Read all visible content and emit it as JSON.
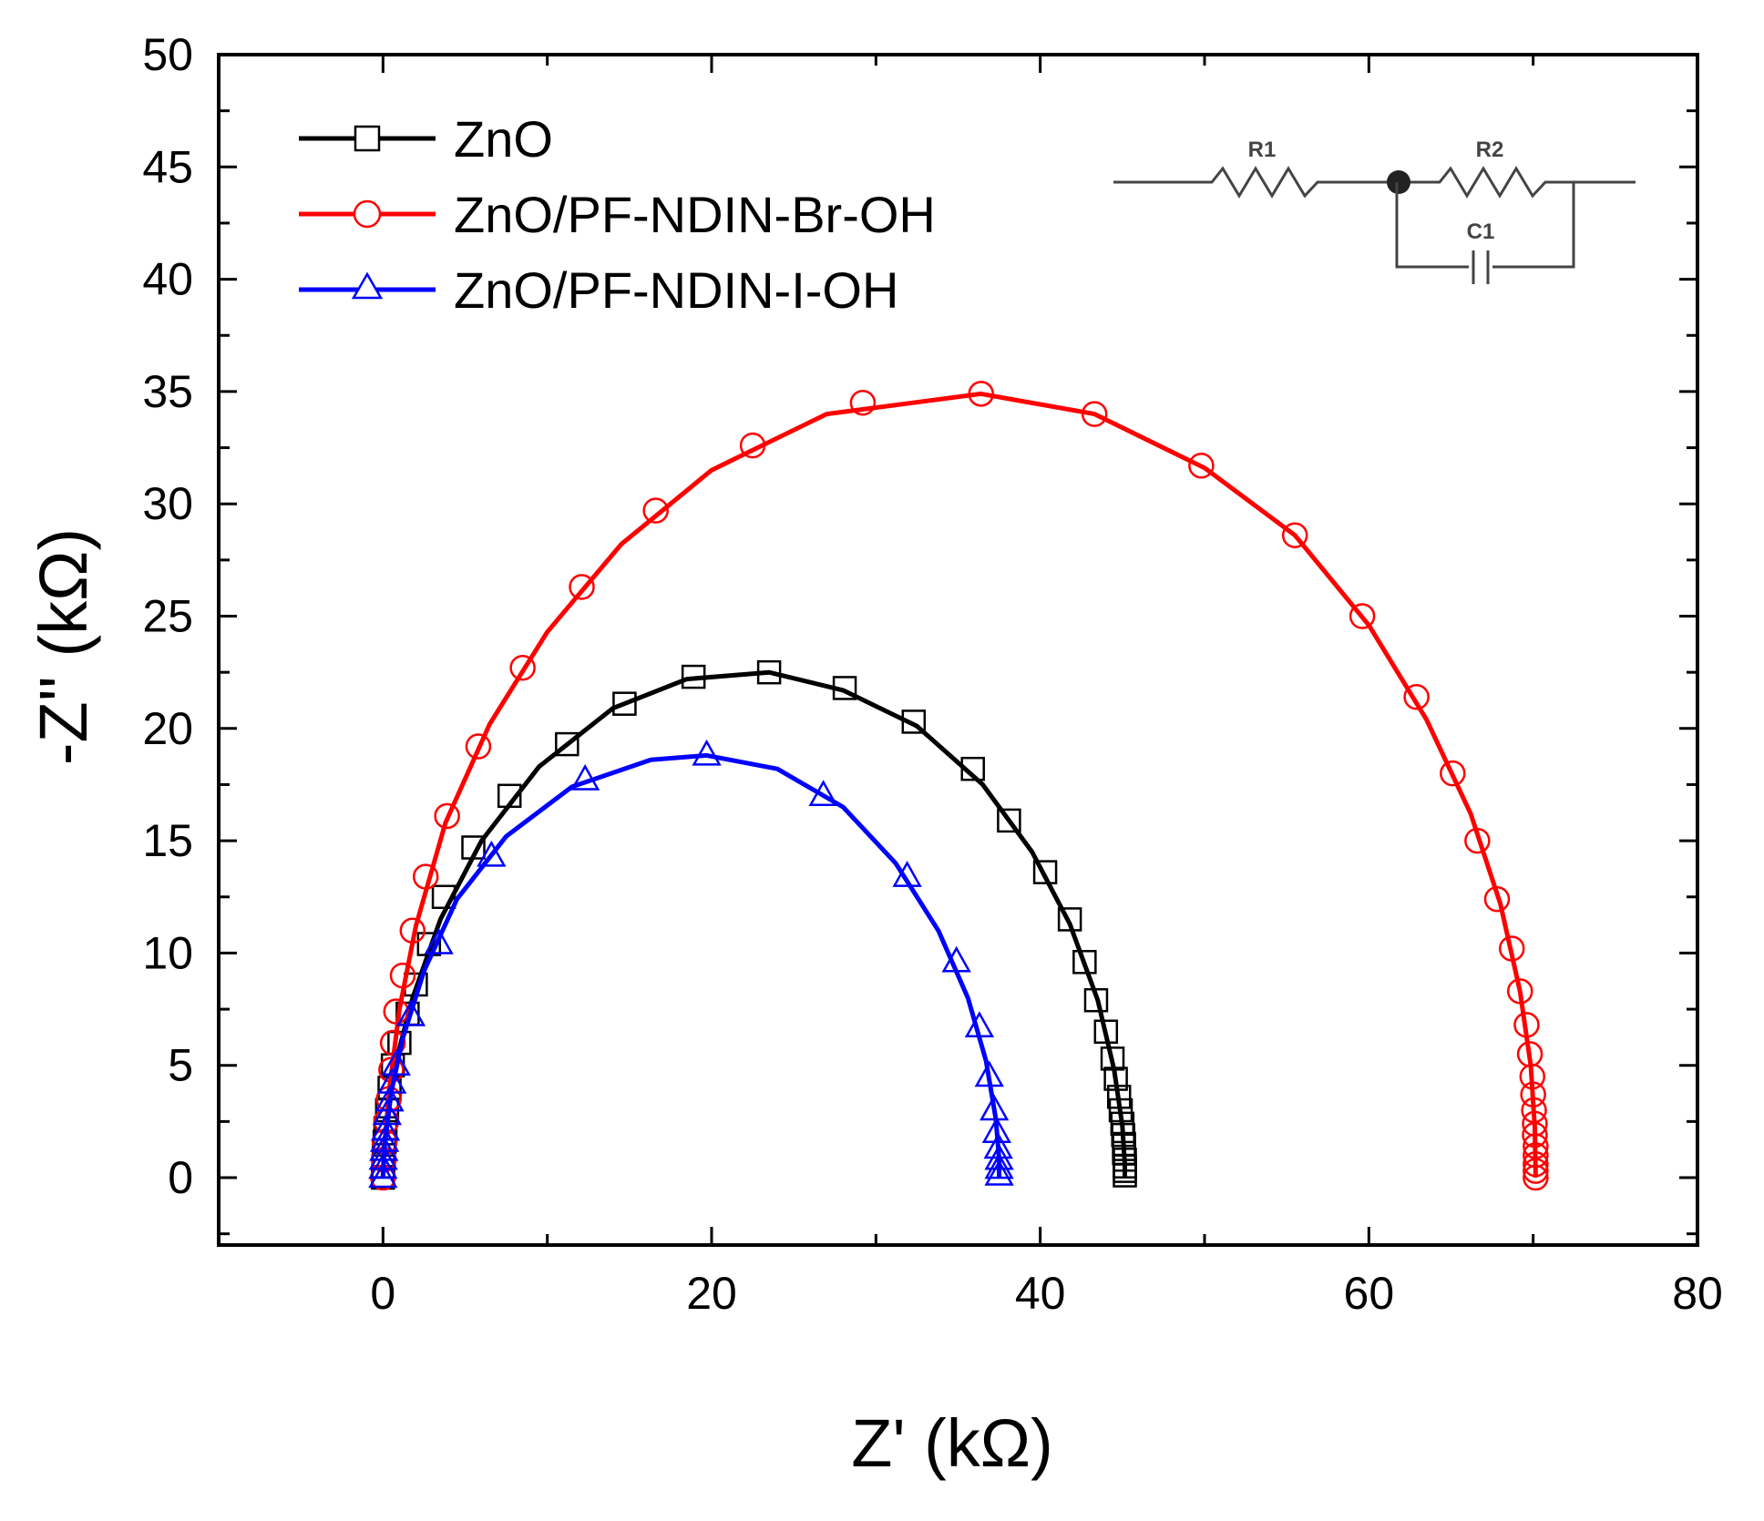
{
  "chart_data": {
    "type": "scatter",
    "title": "",
    "xlabel": "Z' (kΩ)",
    "ylabel": "-Z'' (kΩ)",
    "xlim": [
      -10,
      80
    ],
    "ylim": [
      -3,
      50
    ],
    "xticks": [
      0,
      20,
      40,
      60,
      80
    ],
    "yticks": [
      0,
      5,
      10,
      15,
      20,
      25,
      30,
      35,
      40,
      45,
      50
    ],
    "grid": false,
    "legend_position": "top-left",
    "series": [
      {
        "name": "ZnO",
        "color": "#000000",
        "marker": "square",
        "points": [
          [
            0.0,
            0.0
          ],
          [
            0.02,
            0.5
          ],
          [
            0.05,
            1.0
          ],
          [
            0.1,
            1.6
          ],
          [
            0.15,
            2.2
          ],
          [
            0.25,
            3.0
          ],
          [
            0.4,
            4.0
          ],
          [
            0.6,
            5.0
          ],
          [
            1.0,
            6.0
          ],
          [
            1.5,
            7.3
          ],
          [
            2.0,
            8.6
          ],
          [
            2.8,
            10.4
          ],
          [
            3.7,
            12.5
          ],
          [
            5.5,
            14.7
          ],
          [
            7.7,
            17.0
          ],
          [
            11.2,
            19.3
          ],
          [
            14.7,
            21.1
          ],
          [
            18.9,
            22.3
          ],
          [
            23.5,
            22.5
          ],
          [
            28.1,
            21.8
          ],
          [
            32.3,
            20.3
          ],
          [
            35.9,
            18.2
          ],
          [
            38.1,
            15.9
          ],
          [
            40.3,
            13.6
          ],
          [
            41.8,
            11.5
          ],
          [
            42.7,
            9.6
          ],
          [
            43.4,
            7.9
          ],
          [
            44.0,
            6.5
          ],
          [
            44.4,
            5.3
          ],
          [
            44.6,
            4.4
          ],
          [
            44.8,
            3.6
          ],
          [
            44.9,
            3.0
          ],
          [
            45.0,
            2.4
          ],
          [
            45.05,
            1.9
          ],
          [
            45.1,
            1.5
          ],
          [
            45.1,
            1.1
          ],
          [
            45.15,
            0.8
          ],
          [
            45.15,
            0.5
          ],
          [
            45.15,
            0.3
          ],
          [
            45.15,
            0.1
          ]
        ],
        "fit": [
          [
            0.0,
            0.0
          ],
          [
            0.05,
            1.0
          ],
          [
            0.3,
            3.0
          ],
          [
            0.8,
            5.2
          ],
          [
            1.8,
            8.0
          ],
          [
            3.5,
            11.5
          ],
          [
            6.0,
            15.0
          ],
          [
            9.5,
            18.3
          ],
          [
            14.0,
            20.9
          ],
          [
            18.5,
            22.2
          ],
          [
            23.5,
            22.5
          ],
          [
            28.0,
            21.7
          ],
          [
            32.5,
            20.1
          ],
          [
            36.5,
            17.5
          ],
          [
            39.5,
            14.5
          ],
          [
            41.8,
            11.3
          ],
          [
            43.5,
            7.9
          ],
          [
            44.5,
            4.8
          ],
          [
            45.0,
            2.3
          ],
          [
            45.15,
            0.6
          ],
          [
            45.15,
            0.0
          ]
        ]
      },
      {
        "name": "ZnO/PF-NDIN-Br-OH",
        "color": "#ff0000",
        "marker": "circle",
        "points": [
          [
            0.0,
            0.0
          ],
          [
            0.05,
            0.8
          ],
          [
            0.1,
            1.6
          ],
          [
            0.2,
            2.5
          ],
          [
            0.35,
            3.5
          ],
          [
            0.5,
            4.8
          ],
          [
            0.6,
            6.0
          ],
          [
            0.8,
            7.4
          ],
          [
            1.2,
            9.0
          ],
          [
            1.8,
            11.0
          ],
          [
            2.6,
            13.4
          ],
          [
            3.9,
            16.1
          ],
          [
            5.8,
            19.2
          ],
          [
            8.5,
            22.7
          ],
          [
            12.1,
            26.3
          ],
          [
            16.6,
            29.7
          ],
          [
            22.5,
            32.6
          ],
          [
            29.2,
            34.5
          ],
          [
            36.4,
            34.9
          ],
          [
            43.3,
            34.0
          ],
          [
            49.8,
            31.7
          ],
          [
            55.5,
            28.6
          ],
          [
            59.6,
            25.0
          ],
          [
            62.9,
            21.4
          ],
          [
            65.1,
            18.0
          ],
          [
            66.6,
            15.0
          ],
          [
            67.8,
            12.4
          ],
          [
            68.7,
            10.2
          ],
          [
            69.2,
            8.3
          ],
          [
            69.6,
            6.8
          ],
          [
            69.8,
            5.5
          ],
          [
            69.95,
            4.5
          ],
          [
            70.0,
            3.7
          ],
          [
            70.05,
            3.0
          ],
          [
            70.1,
            2.4
          ],
          [
            70.1,
            1.9
          ],
          [
            70.15,
            1.4
          ],
          [
            70.15,
            1.0
          ],
          [
            70.15,
            0.6
          ],
          [
            70.15,
            0.3
          ],
          [
            70.15,
            0.0
          ]
        ],
        "fit": [
          [
            0.0,
            0.0
          ],
          [
            0.1,
            1.5
          ],
          [
            0.4,
            4.0
          ],
          [
            1.0,
            7.5
          ],
          [
            2.0,
            11.2
          ],
          [
            3.8,
            15.8
          ],
          [
            6.5,
            20.2
          ],
          [
            10.0,
            24.3
          ],
          [
            14.5,
            28.2
          ],
          [
            20.0,
            31.5
          ],
          [
            27.0,
            34.0
          ],
          [
            36.4,
            34.9
          ],
          [
            43.3,
            34.0
          ],
          [
            50.0,
            31.6
          ],
          [
            55.5,
            28.6
          ],
          [
            60.0,
            24.6
          ],
          [
            63.5,
            20.4
          ],
          [
            66.2,
            16.2
          ],
          [
            68.0,
            12.2
          ],
          [
            69.2,
            8.3
          ],
          [
            69.85,
            5.0
          ],
          [
            70.1,
            2.2
          ],
          [
            70.15,
            0.0
          ]
        ]
      },
      {
        "name": "ZnO/PF-NDIN-I-OH",
        "color": "#0000ff",
        "marker": "triangle",
        "points": [
          [
            0.0,
            0.0
          ],
          [
            0.0,
            0.4
          ],
          [
            0.02,
            0.8
          ],
          [
            0.05,
            1.2
          ],
          [
            0.1,
            1.6
          ],
          [
            0.15,
            2.1
          ],
          [
            0.25,
            2.8
          ],
          [
            0.4,
            3.4
          ],
          [
            0.55,
            4.2
          ],
          [
            0.8,
            5.0
          ],
          [
            1.7,
            7.2
          ],
          [
            3.4,
            10.4
          ],
          [
            6.6,
            14.3
          ],
          [
            12.3,
            17.7
          ],
          [
            19.7,
            18.8
          ],
          [
            26.8,
            17.0
          ],
          [
            31.9,
            13.4
          ],
          [
            34.9,
            9.6
          ],
          [
            36.3,
            6.7
          ],
          [
            36.9,
            4.5
          ],
          [
            37.2,
            3.0
          ],
          [
            37.35,
            2.0
          ],
          [
            37.45,
            1.3
          ],
          [
            37.5,
            0.8
          ],
          [
            37.5,
            0.4
          ],
          [
            37.5,
            0.1
          ]
        ],
        "fit": [
          [
            0.0,
            0.0
          ],
          [
            0.1,
            1.4
          ],
          [
            0.5,
            3.8
          ],
          [
            1.2,
            6.2
          ],
          [
            2.5,
            9.2
          ],
          [
            4.5,
            12.4
          ],
          [
            7.5,
            15.2
          ],
          [
            11.5,
            17.4
          ],
          [
            16.3,
            18.6
          ],
          [
            19.7,
            18.8
          ],
          [
            24.0,
            18.2
          ],
          [
            28.0,
            16.5
          ],
          [
            31.2,
            14.0
          ],
          [
            33.8,
            11.0
          ],
          [
            35.6,
            8.0
          ],
          [
            36.7,
            5.2
          ],
          [
            37.3,
            2.6
          ],
          [
            37.5,
            0.8
          ],
          [
            37.5,
            0.0
          ]
        ]
      }
    ],
    "inset": {
      "type": "equivalent-circuit",
      "labels": {
        "r1": "R1",
        "r2": "R2",
        "c1": "C1"
      }
    }
  }
}
